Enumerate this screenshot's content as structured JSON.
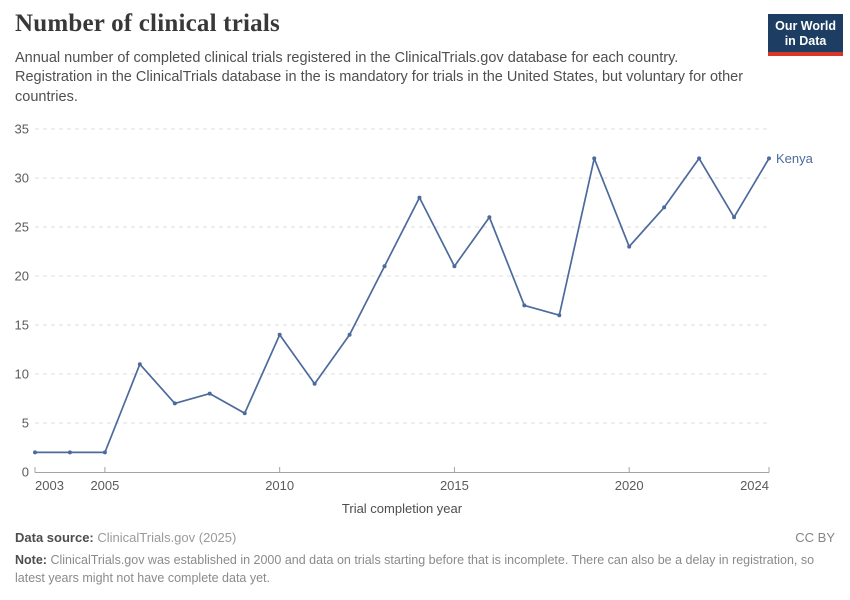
{
  "header": {
    "title": "Number of clinical trials",
    "subtitle": "Annual number of completed clinical trials registered in the ClinicalTrials.gov database for each country. Registration in the ClinicalTrials database in the is mandatory for trials in the United States, but voluntary for other countries.",
    "logo": {
      "line1": "Our World",
      "line2": "in Data"
    }
  },
  "chart_data": {
    "type": "line",
    "title": "Number of clinical trials",
    "xlabel": "Trial completion year",
    "ylabel": "",
    "x": [
      2003,
      2004,
      2005,
      2006,
      2007,
      2008,
      2009,
      2010,
      2011,
      2012,
      2013,
      2014,
      2015,
      2016,
      2017,
      2018,
      2019,
      2020,
      2021,
      2022,
      2023,
      2024
    ],
    "series": [
      {
        "name": "Kenya",
        "values": [
          2,
          2,
          2,
          11,
          7,
          8,
          6,
          14,
          9,
          14,
          21,
          28,
          21,
          26,
          17,
          16,
          32,
          23,
          27,
          32,
          26,
          32
        ]
      }
    ],
    "ylim": [
      0,
      35
    ],
    "yticks": [
      0,
      5,
      10,
      15,
      20,
      25,
      30,
      35
    ],
    "xticks": [
      2003,
      2005,
      2010,
      2015,
      2020,
      2024
    ],
    "grid": "horizontal-dashed",
    "legend_position": "end-of-line-label"
  },
  "colors": {
    "line": "#4c6a9c",
    "grid": "#dcdcdc",
    "axis": "#a3a3a3",
    "tick_text": "#5b5b5b",
    "axis_title_text": "#4d4d4d",
    "logo_navy": "#1d3d63",
    "logo_red": "#d9362a"
  },
  "footer": {
    "source_label": "Data source:",
    "source_value": "ClinicalTrials.gov (2025)",
    "license": "CC BY",
    "note_label": "Note:",
    "note_text": "ClinicalTrials.gov was established in 2000 and data on trials starting before that is incomplete. There can also be a delay in registration, so latest years might not have complete data yet."
  }
}
